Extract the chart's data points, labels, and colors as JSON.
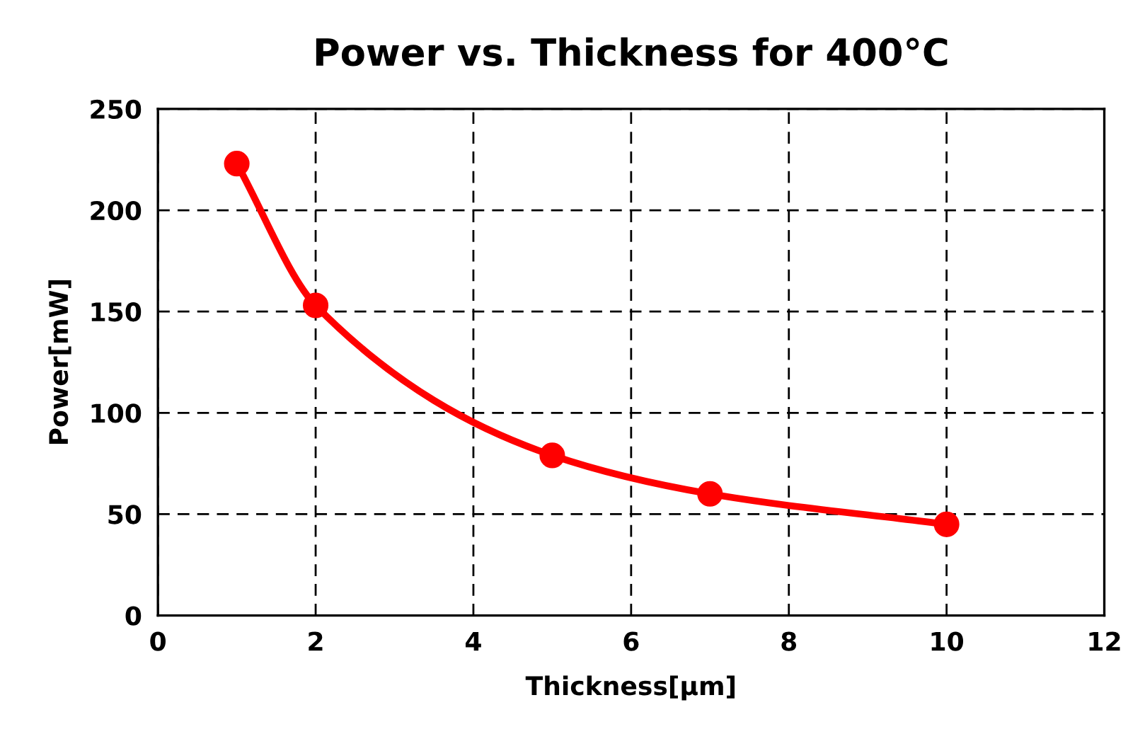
{
  "chart_data": {
    "type": "line",
    "title": "Power vs. Thickness for 400°C",
    "xlabel": "Thickness[µm]",
    "ylabel": "Power[mW]",
    "x": [
      1,
      2,
      5,
      7,
      10
    ],
    "series": [
      {
        "color": "#ff0000",
        "values": [
          223,
          153,
          79,
          60,
          45
        ]
      }
    ],
    "xlim": [
      0,
      12
    ],
    "xticks": [
      0,
      2,
      4,
      6,
      8,
      10,
      12
    ],
    "ylim": [
      0,
      250
    ],
    "yticks": [
      0,
      50,
      100,
      150,
      200,
      250
    ],
    "grid": true,
    "marker": "circle",
    "line_style": "solid"
  }
}
